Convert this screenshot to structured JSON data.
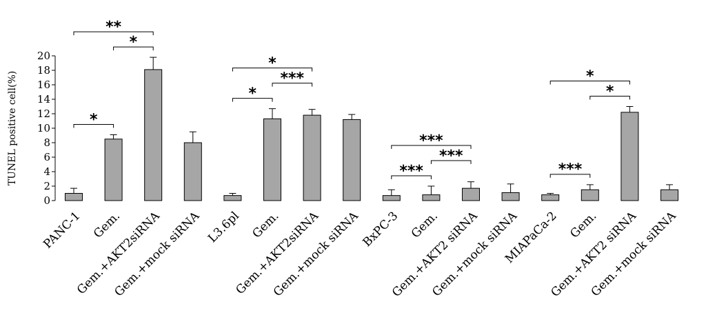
{
  "chart_data": {
    "type": "bar",
    "title": "",
    "xlabel": "",
    "ylabel": "TUNEL positive cell(%)",
    "ylim": [
      0,
      20
    ],
    "yticks": [
      0,
      2,
      4,
      6,
      8,
      10,
      12,
      14,
      16,
      18,
      20
    ],
    "grid": false,
    "bar_color": "#a6a6a6",
    "categories": [
      "PANC-1",
      "Gem.",
      "Gem.+AKT2siRNA",
      "Gem.+mock siRNA",
      "L3.6pl",
      "Gem.",
      "Gem.+AKT2siRNA",
      "Gem.+mock siRNA",
      "BxPC-3",
      "Gem.",
      "Gem.+AKT2 siRNA",
      "Gem.+mock siRNA",
      "MIAPaCa-2",
      "Gem.",
      "Gem.+AKT2 siRNA",
      "Gem.+mock siRNA"
    ],
    "values": [
      1.0,
      8.5,
      18.1,
      8.0,
      0.7,
      11.3,
      11.8,
      11.2,
      0.7,
      0.8,
      1.7,
      1.1,
      0.8,
      1.5,
      12.2,
      1.5
    ],
    "errors": [
      0.7,
      0.6,
      1.7,
      1.5,
      0.3,
      1.4,
      0.8,
      0.7,
      0.8,
      1.2,
      0.9,
      1.2,
      0.2,
      0.7,
      0.8,
      0.7
    ],
    "significance": [
      {
        "from": 0,
        "to": 1,
        "label": "*"
      },
      {
        "from": 0,
        "to": 2,
        "label": "**"
      },
      {
        "from": 1,
        "to": 2,
        "label": "*"
      },
      {
        "from": 4,
        "to": 5,
        "label": "*"
      },
      {
        "from": 4,
        "to": 6,
        "label": "*"
      },
      {
        "from": 5,
        "to": 6,
        "label": "***"
      },
      {
        "from": 8,
        "to": 9,
        "label": "***"
      },
      {
        "from": 8,
        "to": 10,
        "label": "***"
      },
      {
        "from": 9,
        "to": 10,
        "label": "***"
      },
      {
        "from": 12,
        "to": 13,
        "label": "***"
      },
      {
        "from": 12,
        "to": 14,
        "label": "*"
      },
      {
        "from": 13,
        "to": 14,
        "label": "*"
      }
    ]
  }
}
